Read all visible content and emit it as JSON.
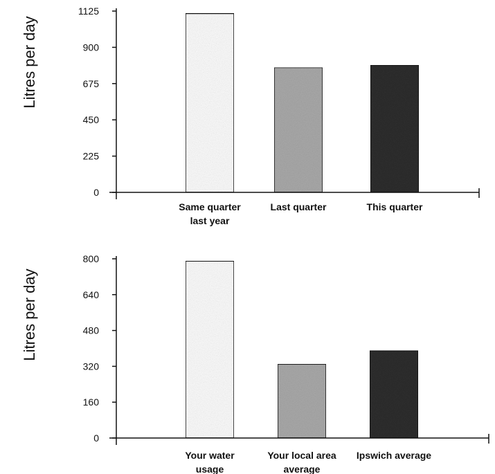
{
  "chart_data": [
    {
      "type": "bar",
      "ylabel": "Litres per day",
      "xlabel": "",
      "ylim": [
        0,
        1125
      ],
      "yticks": [
        "0",
        "225",
        "450",
        "675",
        "900",
        "1125"
      ],
      "categories": [
        [
          "Same quarter",
          "last year"
        ],
        [
          "Last quarter"
        ],
        [
          "This quarter"
        ]
      ],
      "values": [
        1110,
        775,
        790
      ],
      "colors": [
        "#fbfbfb",
        "#a9a9a9",
        "#2e2e2e"
      ],
      "grid": false
    },
    {
      "type": "bar",
      "ylabel": "Litres per day",
      "xlabel": "",
      "ylim": [
        0,
        800
      ],
      "yticks": [
        "0",
        "160",
        "320",
        "480",
        "640",
        "800"
      ],
      "categories": [
        [
          "Your water",
          "usage"
        ],
        [
          "Your local area",
          "average"
        ],
        [
          "Ipswich average"
        ]
      ],
      "values": [
        790,
        330,
        390
      ],
      "colors": [
        "#fbfbfb",
        "#a9a9a9",
        "#2e2e2e"
      ],
      "grid": false
    }
  ]
}
